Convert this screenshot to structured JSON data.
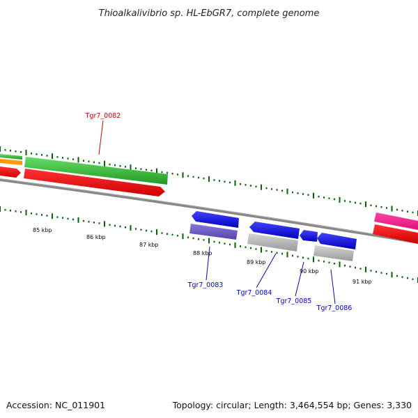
{
  "title": "Thioalkalivibrio sp. HL-EbGR7, complete genome",
  "footer": {
    "accession": "Accession: NC_011901",
    "topology": "Topology: circular; Length: 3,464,554 bp; Genes: 3,330"
  },
  "scale_labels": [
    "85 kbp",
    "86 kbp",
    "87 kbp",
    "88 kbp",
    "89 kbp",
    "90 kbp",
    "91 kbp"
  ],
  "genes": [
    {
      "id": "Tgr7_0082",
      "color": "#cc0000"
    },
    {
      "id": "Tgr7_0083",
      "color": "#0000cc"
    },
    {
      "id": "Tgr7_0084",
      "color": "#0000cc"
    },
    {
      "id": "Tgr7_0085",
      "color": "#0000cc"
    },
    {
      "id": "Tgr7_0086",
      "color": "#0000cc"
    }
  ],
  "colors": {
    "cds_red": "#ff0000",
    "gene_green": "#44cc44",
    "gene_blue": "#0000ee",
    "gene_purple": "#7766cc",
    "gene_gray": "#bbbbbb",
    "gene_pink": "#ff2299",
    "gene_orange": "#ff9900",
    "tick_green": "#006600",
    "backbone": "#888888"
  }
}
